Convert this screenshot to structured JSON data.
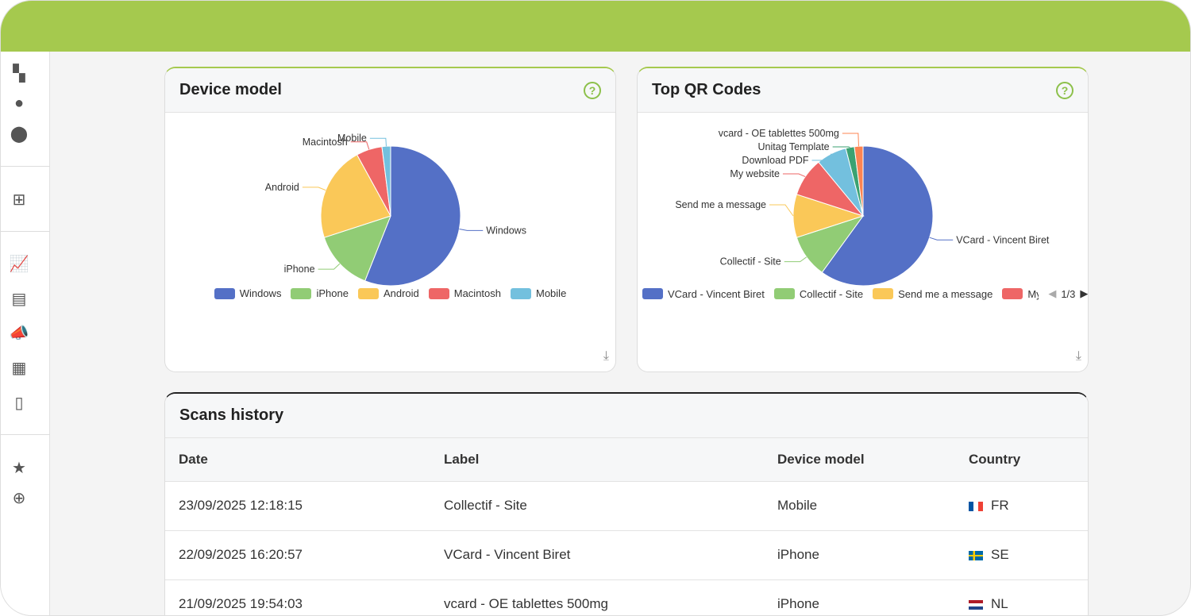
{
  "sidebar": {
    "icons": [
      "dashboard-icon",
      "user-icon",
      "group-icon",
      "apps-icon",
      "analytics-icon",
      "qr-documents-icon",
      "campaign-icon",
      "qr-code-icon",
      "contact-card-icon",
      "star-icon",
      "add-icon"
    ]
  },
  "device_chart": {
    "title": "Device model",
    "help": "?",
    "chart_data": {
      "type": "pie",
      "categories": [
        "Windows",
        "iPhone",
        "Android",
        "Macintosh",
        "Mobile"
      ],
      "values": [
        56,
        14,
        22,
        6,
        2
      ],
      "colors": [
        "#5470c6",
        "#91cc75",
        "#fac858",
        "#ee6666",
        "#73c0de"
      ]
    }
  },
  "qr_chart": {
    "title": "Top QR Codes",
    "help": "?",
    "legend_page": "1/3",
    "legend_cut": "My",
    "chart_data": {
      "type": "pie",
      "categories": [
        "VCard - Vincent Biret",
        "Collectif - Site",
        "Send me a message",
        "My website",
        "Download PDF",
        "Unitag Template",
        "vcard - OE tablettes 500mg"
      ],
      "values": [
        60,
        10,
        10,
        9,
        7,
        2,
        2
      ],
      "colors": [
        "#5470c6",
        "#91cc75",
        "#fac858",
        "#ee6666",
        "#73c0de",
        "#3ba272",
        "#fc8452"
      ]
    }
  },
  "scans": {
    "title": "Scans history",
    "columns": [
      "Date",
      "Label",
      "Device model",
      "Country"
    ],
    "rows": [
      {
        "date": "23/09/2025 12:18:15",
        "label": "Collectif - Site",
        "device": "Mobile",
        "country": "FR"
      },
      {
        "date": "22/09/2025 16:20:57",
        "label": "VCard - Vincent Biret",
        "device": "iPhone",
        "country": "SE"
      },
      {
        "date": "21/09/2025 19:54:03",
        "label": "vcard - OE tablettes 500mg",
        "device": "iPhone",
        "country": "NL"
      }
    ]
  }
}
